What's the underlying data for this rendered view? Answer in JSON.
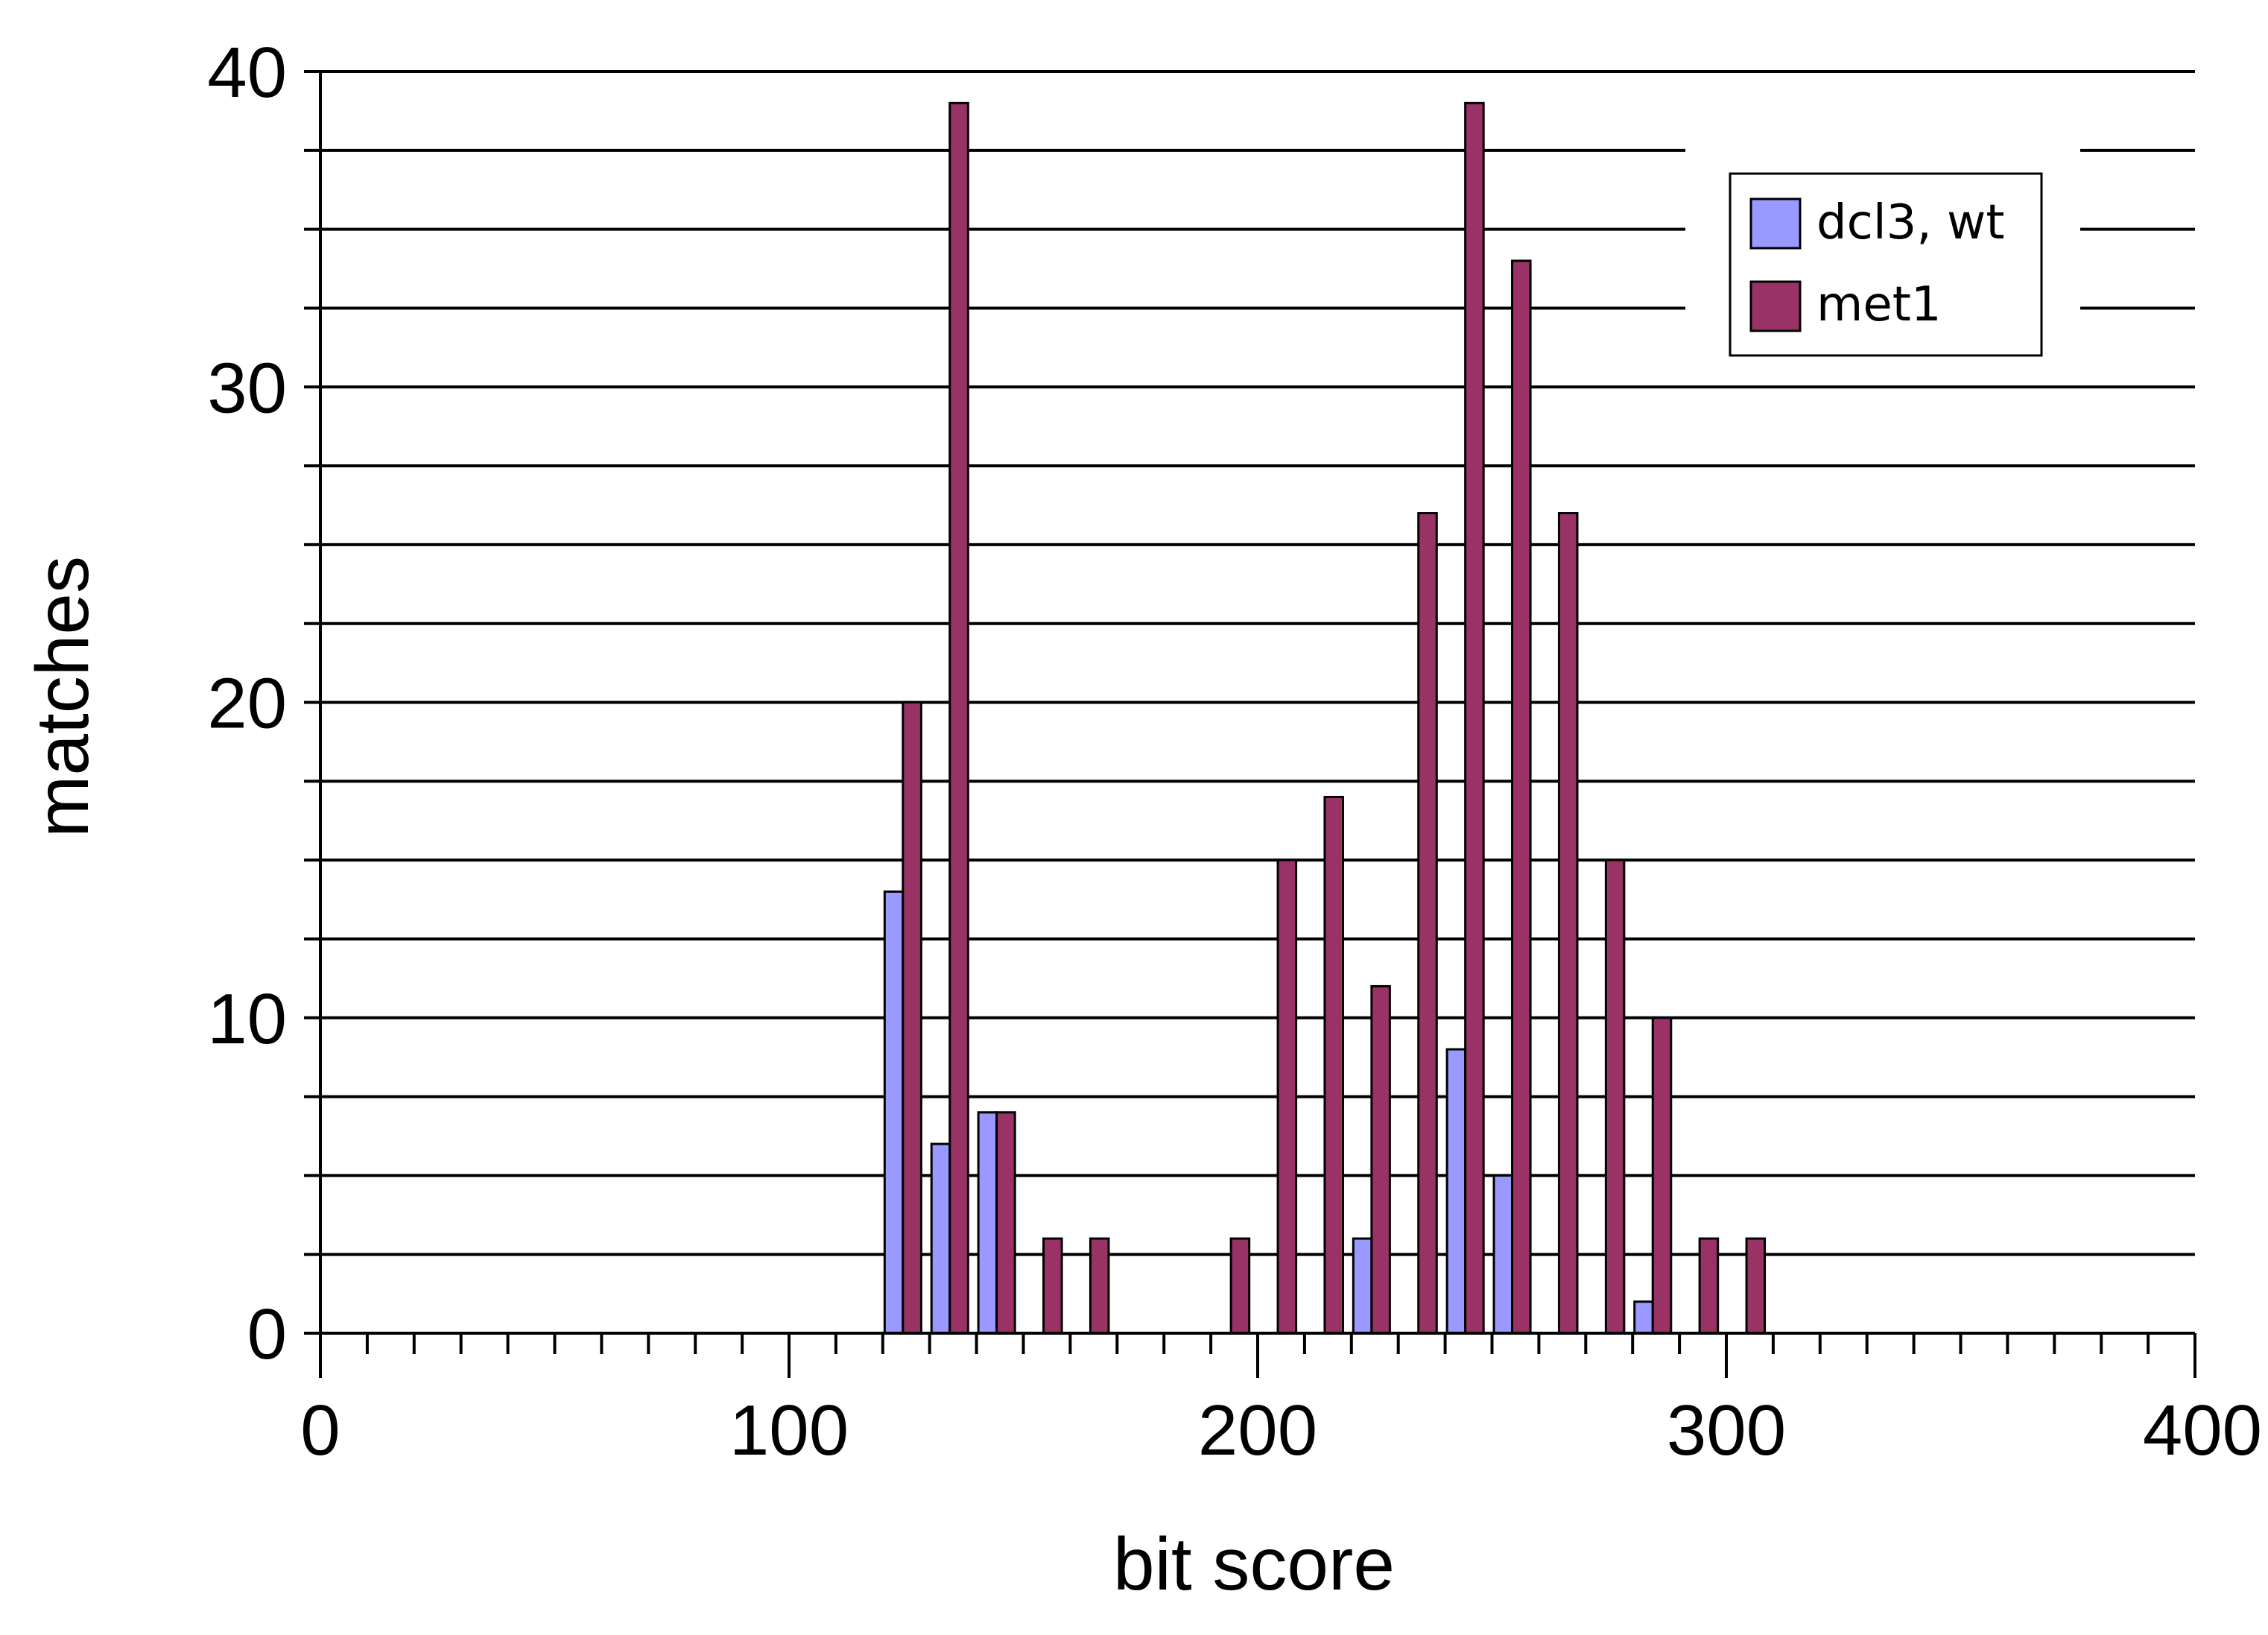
{
  "chart_data": {
    "type": "bar",
    "xlabel": "bit score",
    "ylabel": "matches",
    "xlim": [
      0,
      400
    ],
    "ylim": [
      0,
      40
    ],
    "x_ticks": [
      "0",
      "100",
      "200",
      "300",
      "400"
    ],
    "y_ticks": [
      "0",
      "10",
      "20",
      "30",
      "40"
    ],
    "grid": "horizontal",
    "legend_position": "top-right",
    "bin_width": 10,
    "series": [
      {
        "name": "dcl3, wt",
        "color": "#9999ff",
        "points": [
          {
            "x": 125,
            "y": 14
          },
          {
            "x": 135,
            "y": 6
          },
          {
            "x": 145,
            "y": 7
          },
          {
            "x": 225,
            "y": 3
          },
          {
            "x": 245,
            "y": 9
          },
          {
            "x": 255,
            "y": 5
          },
          {
            "x": 285,
            "y": 1
          }
        ]
      },
      {
        "name": "met1",
        "color": "#993366",
        "points": [
          {
            "x": 125,
            "y": 20
          },
          {
            "x": 135,
            "y": 39
          },
          {
            "x": 145,
            "y": 7
          },
          {
            "x": 155,
            "y": 3
          },
          {
            "x": 165,
            "y": 3
          },
          {
            "x": 195,
            "y": 3
          },
          {
            "x": 205,
            "y": 15
          },
          {
            "x": 215,
            "y": 17
          },
          {
            "x": 225,
            "y": 11
          },
          {
            "x": 235,
            "y": 26
          },
          {
            "x": 245,
            "y": 39
          },
          {
            "x": 255,
            "y": 34
          },
          {
            "x": 265,
            "y": 26
          },
          {
            "x": 275,
            "y": 15
          },
          {
            "x": 285,
            "y": 10
          },
          {
            "x": 295,
            "y": 3
          },
          {
            "x": 305,
            "y": 3
          }
        ]
      }
    ]
  }
}
